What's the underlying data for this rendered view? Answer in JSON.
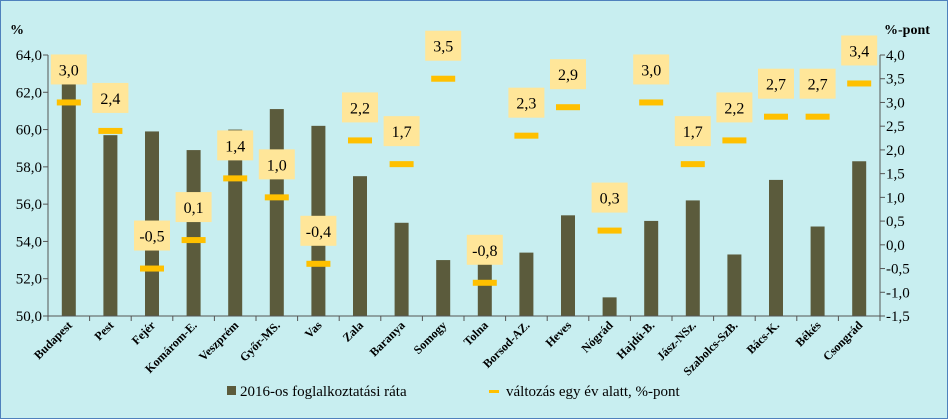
{
  "chart_data": {
    "type": "bar",
    "categories": [
      "Budapest",
      "Pest",
      "Fejér",
      "Komárom-E.",
      "Veszprém",
      "Győr-MS.",
      "Vas",
      "Zala",
      "Baranya",
      "Somogy",
      "Tolna",
      "Borsod-AZ.",
      "Heves",
      "Nógrád",
      "Hajdú-B.",
      "Jász-NSz.",
      "Szabolcs-SzB.",
      "Bács-K.",
      "Békés",
      "Csongrád"
    ],
    "series": [
      {
        "name": "2016-os foglalkoztatási ráta",
        "type": "bar",
        "axis": "left",
        "color": "#5b5b3c",
        "values": [
          62.7,
          59.7,
          59.9,
          58.9,
          60.0,
          61.1,
          60.2,
          57.5,
          55.0,
          53.0,
          53.1,
          53.4,
          55.4,
          51.0,
          55.1,
          56.2,
          53.3,
          57.3,
          54.8,
          58.3
        ]
      },
      {
        "name": "változás egy év alatt, %-pont",
        "type": "marker",
        "axis": "right",
        "color": "#ffc000",
        "values": [
          3.0,
          2.4,
          -0.5,
          0.1,
          1.4,
          1.0,
          -0.4,
          2.2,
          1.7,
          3.5,
          -0.8,
          2.3,
          2.9,
          0.3,
          3.0,
          1.7,
          2.2,
          2.7,
          2.7,
          3.4
        ],
        "labels": [
          "3,0",
          "2,4",
          "-0,5",
          "0,1",
          "1,4",
          "1,0",
          "-0,4",
          "2,2",
          "1,7",
          "3,5",
          "-0,8",
          "2,3",
          "2,9",
          "0,3",
          "3,0",
          "1,7",
          "2,2",
          "2,7",
          "2,7",
          "3,4"
        ]
      }
    ],
    "y_left": {
      "unit_label": "%",
      "ylim": [
        50,
        64
      ],
      "ticks": [
        "50,0",
        "52,0",
        "54,0",
        "56,0",
        "58,0",
        "60,0",
        "62,0",
        "64,0"
      ]
    },
    "y_right": {
      "unit_label": "%-pont",
      "ylim": [
        -1.5,
        4.0
      ],
      "ticks": [
        "-1,5",
        "-1,0",
        "-0,5",
        "0,0",
        "0,5",
        "1,0",
        "1,5",
        "2,0",
        "2,5",
        "3,0",
        "3,5",
        "4,0"
      ]
    },
    "legend_position": "bottom",
    "colors": {
      "background": "#c8eef0",
      "border": "#4f81bd",
      "label_box": "#ffe699"
    }
  }
}
